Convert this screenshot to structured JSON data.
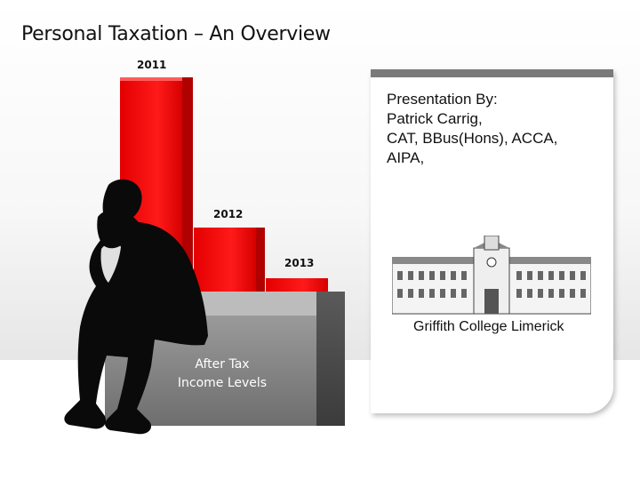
{
  "slide": {
    "title": "Personal Taxation – An Overview",
    "box_label_lines": [
      "After Tax",
      "Income Levels"
    ]
  },
  "chart_data": {
    "type": "bar",
    "categories": [
      "2011",
      "2012",
      "2013"
    ],
    "title": "",
    "xlabel": "",
    "ylabel": ""
  },
  "card": {
    "lines": [
      "Presentation By:",
      "Patrick Carrig,",
      "CAT, BBus(Hons), ACCA,",
      "AIPA,"
    ],
    "college_name": "Griffith College Limerick",
    "image_icon": "college-building-icon"
  },
  "colors": {
    "bar_red": "#ff0000",
    "box_gray": "#7a7a7a",
    "card_border": "#7a7a7a"
  }
}
